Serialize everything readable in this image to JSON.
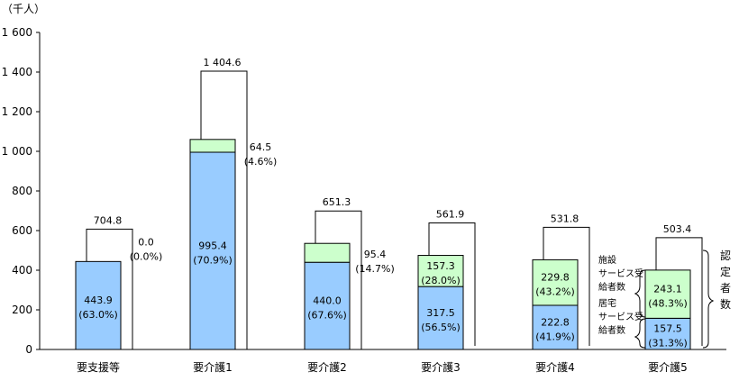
{
  "chart_data": {
    "type": "bar",
    "unit_label": "（千人）",
    "ylim": [
      0,
      1600
    ],
    "yticks": [
      "0",
      "200",
      "400",
      "600",
      "800",
      "1 000",
      "1 200",
      "1 400",
      "1 600"
    ],
    "ytick_values": [
      0,
      200,
      400,
      600,
      800,
      1000,
      1200,
      1400,
      1600
    ],
    "categories": [
      "要支援等",
      "要介護1",
      "要介護2",
      "要介護3",
      "要介護4",
      "要介護5"
    ],
    "series": [
      {
        "name": "居宅サービス受給者数",
        "color": "#99ccff",
        "values": [
          443.9,
          995.4,
          440.0,
          317.5,
          222.8,
          157.5
        ],
        "labels": [
          "443.9\n(63.0%)",
          "995.4\n(70.9%)",
          "440.0\n(67.6%)",
          "317.5\n(56.5%)",
          "222.8\n(41.9%)",
          "157.5\n(31.3%)"
        ]
      },
      {
        "name": "施設サービス受給者数",
        "color": "#ccffcc",
        "values": [
          0.0,
          64.5,
          95.4,
          157.3,
          229.8,
          243.1
        ],
        "labels": [
          "0.0\n(0.0%)",
          "64.5\n(4.6%)",
          "95.4\n(14.7%)",
          "157.3\n(28.0%)",
          "229.8\n(43.2%)",
          "243.1\n(48.3%)"
        ]
      }
    ],
    "totals": [
      704.8,
      1404.6,
      651.3,
      561.9,
      531.8,
      503.4
    ],
    "total_labels": [
      "704.8",
      "1 404.6",
      "651.3",
      "561.9",
      "531.8",
      "503.4"
    ],
    "annotations": {
      "facility_lines": [
        "施設",
        "サービス受",
        "給者数"
      ],
      "home_lines": [
        "居宅",
        "サービス受",
        "給者数"
      ],
      "certified_lines": [
        "認",
        "定",
        "者",
        "数"
      ]
    }
  }
}
